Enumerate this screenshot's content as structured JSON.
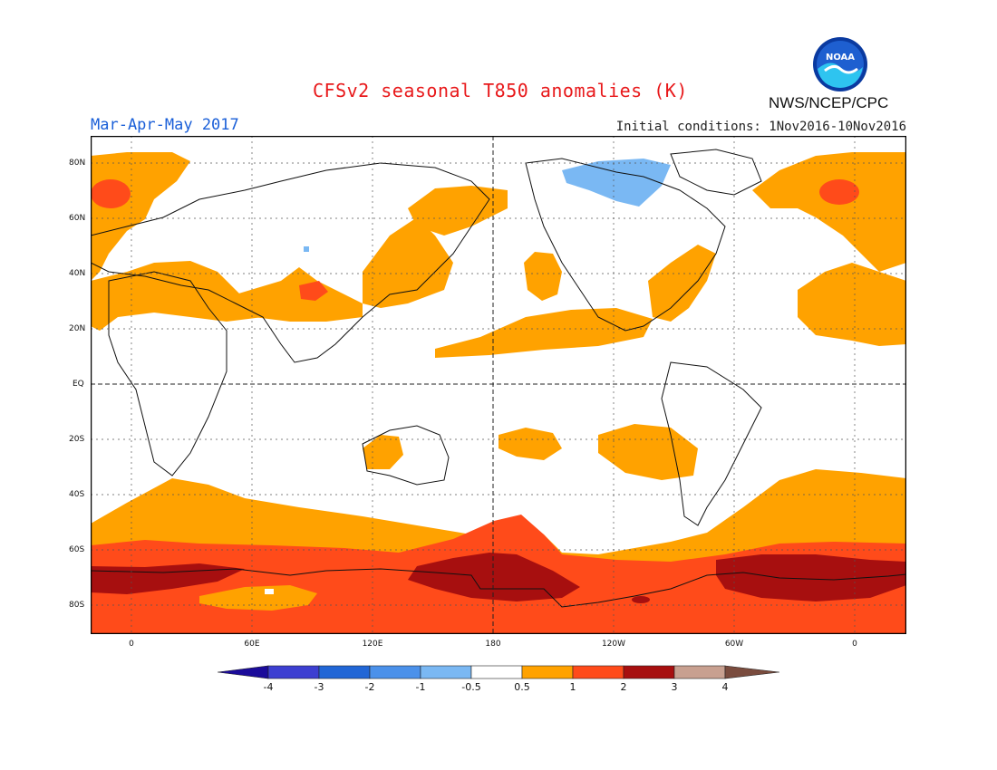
{
  "title": "CFSv2 seasonal T850 anomalies (K)",
  "season": "Mar-Apr-May 2017",
  "initial_conditions": "Initial conditions: 1Nov2016-10Nov2016",
  "agency": "NWS/NCEP/CPC",
  "logo_text": "NOAA",
  "lat_labels": [
    "80N",
    "60N",
    "40N",
    "20N",
    "EQ",
    "20S",
    "40S",
    "60S",
    "80S"
  ],
  "lon_labels": [
    "0",
    "60E",
    "120E",
    "180",
    "120W",
    "60W",
    "0"
  ],
  "colorbar": {
    "labels": [
      "-4",
      "-3",
      "-2",
      "-1",
      "-0.5",
      "0.5",
      "1",
      "2",
      "3",
      "4"
    ],
    "colors": [
      "#1b0b9a",
      "#3d3fd1",
      "#2166d6",
      "#4b91ea",
      "#7ab8f3",
      "#ffffff",
      "#ffa200",
      "#ff4b1a",
      "#a70f0f",
      "#c8a090",
      "#7a4c3e"
    ]
  },
  "colors": {
    "title": "#e8191b",
    "season": "#1a5fd8",
    "orange": "#ffa200",
    "red": "#ff4b1a",
    "darkred": "#a70f0f",
    "lightblue": "#7ab8f3"
  }
}
